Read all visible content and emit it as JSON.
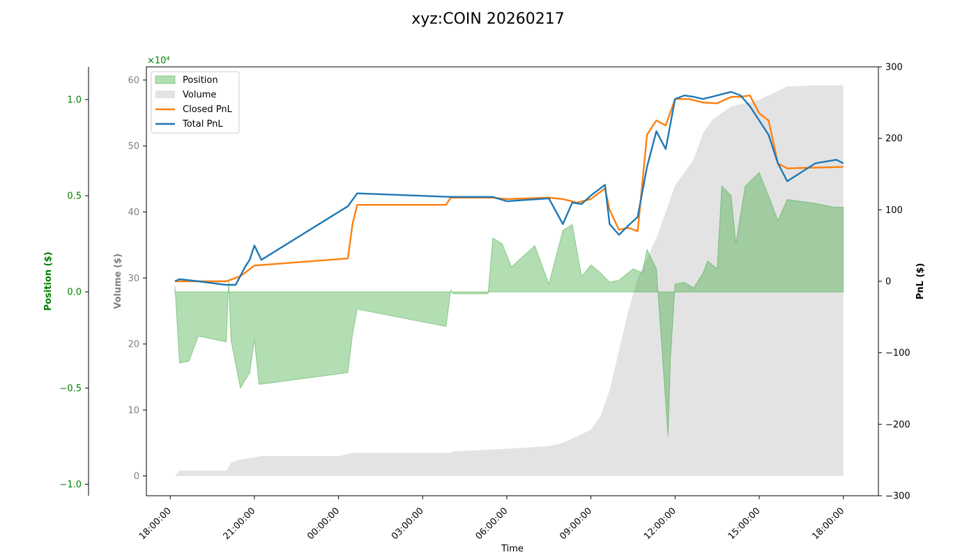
{
  "chart_data": {
    "type": "area",
    "title": "xyz:COIN 20260217",
    "xlabel": "Time",
    "x_ticks": [
      "18:00:00",
      "21:00:00",
      "00:00:00",
      "03:00:00",
      "06:00:00",
      "09:00:00",
      "12:00:00",
      "15:00:00",
      "18:00:00"
    ],
    "volume_axis": {
      "label": "Volume ($)",
      "multiplier": "×10⁴",
      "ticks": [
        "0",
        "10",
        "20",
        "30",
        "40",
        "50",
        "60"
      ],
      "range": [
        -3,
        62
      ],
      "color": "#808080"
    },
    "position_axis": {
      "label": "Position ($)",
      "ticks": [
        "−1.0",
        "−0.5",
        "0.0",
        "0.5",
        "1.0"
      ],
      "range": [
        -1.06,
        1.17
      ],
      "color": "#008000"
    },
    "pnl_axis": {
      "label": "PnL ($)",
      "ticks": [
        "−300",
        "−200",
        "−100",
        "0",
        "100",
        "200",
        "300"
      ],
      "range": [
        -300,
        300
      ],
      "color": "#000000"
    },
    "legend": {
      "placement": "top-left",
      "items": [
        {
          "label": "Position",
          "kind": "patch",
          "color": "#2ca02c"
        },
        {
          "label": "Volume",
          "kind": "patch",
          "color": "#b0b0b0"
        },
        {
          "label": "Closed PnL",
          "kind": "line",
          "color": "#ff7f0e"
        },
        {
          "label": "Total PnL",
          "kind": "line",
          "color": "#1f77b4"
        }
      ]
    },
    "series": [
      {
        "name": "Volume",
        "color": "#b0b0b0",
        "axis": "volume",
        "x": [
          "02-16 18:10",
          "02-16 18:20",
          "02-16 20:00",
          "02-16 20:10",
          "02-16 20:30",
          "02-16 21:00",
          "02-16 21:15",
          "02-17 00:00",
          "02-17 00:30",
          "02-17 04:00",
          "02-17 04:05",
          "02-17 05:30",
          "02-17 07:30",
          "02-17 08:00",
          "02-17 08:30",
          "02-17 09:00",
          "02-17 09:20",
          "02-17 09:40",
          "02-17 10:00",
          "02-17 10:20",
          "02-17 10:40",
          "02-17 11:00",
          "02-17 11:20",
          "02-17 11:40",
          "02-17 12:00",
          "02-17 12:20",
          "02-17 12:40",
          "02-17 13:00",
          "02-17 13:20",
          "02-17 13:40",
          "02-17 14:00",
          "02-17 14:30",
          "02-17 15:00",
          "02-17 15:30",
          "02-17 16:00",
          "02-17 17:00",
          "02-17 18:00"
        ],
        "values": [
          0,
          0.8,
          0.8,
          2,
          2.5,
          2.8,
          3,
          3,
          3.5,
          3.5,
          3.7,
          4,
          4.5,
          5,
          6,
          7,
          9,
          13,
          19,
          25,
          30,
          33,
          36,
          40,
          44,
          46,
          48,
          52,
          54,
          55,
          56,
          56.5,
          57,
          58,
          59,
          59.2,
          59.2
        ]
      },
      {
        "name": "Position",
        "color": "#2ca02c",
        "axis": "position",
        "x": [
          "02-16 18:10",
          "02-16 18:20",
          "02-16 18:40",
          "02-16 19:00",
          "02-16 20:00",
          "02-16 20:05",
          "02-16 20:10",
          "02-16 20:30",
          "02-16 20:50",
          "02-16 21:00",
          "02-16 21:10",
          "02-16 21:15",
          "02-17 00:20",
          "02-17 00:30",
          "02-17 00:40",
          "02-17 03:50",
          "02-17 04:00",
          "02-17 04:05",
          "02-17 04:10",
          "02-17 05:20",
          "02-17 05:30",
          "02-17 05:50",
          "02-17 06:10",
          "02-17 07:00",
          "02-17 07:30",
          "02-17 08:00",
          "02-17 08:20",
          "02-17 08:40",
          "02-17 09:00",
          "02-17 09:20",
          "02-17 09:40",
          "02-17 10:00",
          "02-17 10:30",
          "02-17 10:50",
          "02-17 11:00",
          "02-17 11:20",
          "02-17 11:45",
          "02-17 11:50",
          "02-17 12:00",
          "02-17 12:20",
          "02-17 12:40",
          "02-17 13:00",
          "02-17 13:10",
          "02-17 13:30",
          "02-17 13:40",
          "02-17 14:00",
          "02-17 14:10",
          "02-17 14:30",
          "02-17 15:00",
          "02-17 15:20",
          "02-17 15:40",
          "02-17 16:00",
          "02-17 17:00",
          "02-17 17:40",
          "02-17 18:00"
        ],
        "values": [
          0.03,
          -0.37,
          -0.36,
          -0.23,
          -0.26,
          0.06,
          -0.25,
          -0.5,
          -0.42,
          -0.25,
          -0.48,
          -0.48,
          -0.42,
          -0.22,
          -0.09,
          -0.18,
          0.01,
          -0.01,
          -0.01,
          -0.01,
          0.28,
          0.25,
          0.13,
          0.24,
          0.04,
          0.32,
          0.35,
          0.08,
          0.14,
          0.1,
          0.05,
          0.06,
          0.12,
          0.1,
          0.22,
          0.12,
          -0.75,
          -0.35,
          0.04,
          0.05,
          0.02,
          0.1,
          0.16,
          0.12,
          0.55,
          0.5,
          0.25,
          0.55,
          0.62,
          0.5,
          0.37,
          0.48,
          0.46,
          0.44,
          0.44
        ]
      },
      {
        "name": "Closed PnL",
        "color": "#ff7f0e",
        "axis": "pnl",
        "x": [
          "02-16 18:10",
          "02-16 20:00",
          "02-16 20:30",
          "02-16 21:00",
          "02-17 00:20",
          "02-17 00:30",
          "02-17 00:40",
          "02-17 03:50",
          "02-17 04:00",
          "02-17 05:30",
          "02-17 06:00",
          "02-17 07:30",
          "02-17 08:00",
          "02-17 08:30",
          "02-17 09:00",
          "02-17 09:30",
          "02-17 09:40",
          "02-17 10:00",
          "02-17 10:20",
          "02-17 10:40",
          "02-17 11:00",
          "02-17 11:20",
          "02-17 11:40",
          "02-17 12:00",
          "02-17 12:30",
          "02-17 13:00",
          "02-17 13:30",
          "02-17 14:00",
          "02-17 14:20",
          "02-17 14:40",
          "02-17 15:00",
          "02-17 15:20",
          "02-17 15:30",
          "02-17 15:40",
          "02-17 16:00",
          "02-17 17:00",
          "02-17 18:00"
        ],
        "values": [
          0,
          0,
          7,
          22,
          32,
          80,
          107,
          107,
          117,
          117,
          115,
          117,
          115,
          110,
          115,
          130,
          100,
          72,
          75,
          70,
          205,
          225,
          218,
          255,
          255,
          250,
          249,
          258,
          258,
          260,
          235,
          225,
          195,
          165,
          158,
          159,
          160
        ]
      },
      {
        "name": "Total PnL",
        "color": "#1f77b4",
        "axis": "pnl",
        "x": [
          "02-16 18:10",
          "02-16 18:20",
          "02-16 19:00",
          "02-16 20:00",
          "02-16 20:20",
          "02-16 20:40",
          "02-16 20:50",
          "02-16 21:00",
          "02-16 21:15",
          "02-17 00:20",
          "02-17 00:40",
          "02-17 04:00",
          "02-17 05:30",
          "02-17 06:00",
          "02-17 07:30",
          "02-17 08:00",
          "02-17 08:20",
          "02-17 08:40",
          "02-17 09:00",
          "02-17 09:30",
          "02-17 09:40",
          "02-17 10:00",
          "02-17 10:20",
          "02-17 10:40",
          "02-17 11:00",
          "02-17 11:20",
          "02-17 11:40",
          "02-17 12:00",
          "02-17 12:20",
          "02-17 12:40",
          "02-17 13:00",
          "02-17 13:30",
          "02-17 14:00",
          "02-17 14:20",
          "02-17 14:40",
          "02-17 15:00",
          "02-17 15:20",
          "02-17 15:40",
          "02-17 16:00",
          "02-17 17:00",
          "02-17 17:45",
          "02-17 18:00"
        ],
        "values": [
          0,
          3,
          0,
          -5,
          -5,
          20,
          30,
          50,
          30,
          105,
          123,
          118,
          118,
          112,
          116,
          80,
          110,
          108,
          120,
          135,
          80,
          65,
          78,
          90,
          160,
          210,
          185,
          255,
          260,
          258,
          255,
          260,
          265,
          260,
          245,
          225,
          205,
          165,
          140,
          165,
          170,
          165
        ]
      }
    ]
  }
}
